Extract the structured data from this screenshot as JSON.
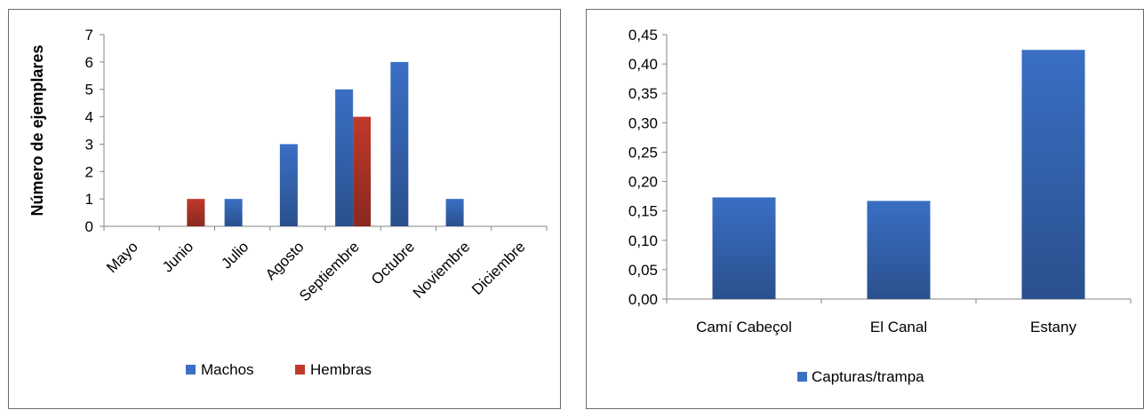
{
  "chart_data": [
    {
      "type": "bar",
      "ylabel": "Número de ejemplares",
      "xlabel": "",
      "ylim": [
        0,
        7
      ],
      "y_ticks": [
        "0",
        "1",
        "2",
        "3",
        "4",
        "5",
        "6",
        "7"
      ],
      "categories": [
        "Mayo",
        "Junio",
        "Julio",
        "Agosto",
        "Septiembre",
        "Octubre",
        "Noviembre",
        "Diciembre"
      ],
      "series": [
        {
          "name": "Machos",
          "color": "#3a6fc4",
          "values": [
            0,
            0,
            1,
            3,
            5,
            6,
            1,
            0
          ]
        },
        {
          "name": "Hembras",
          "color": "#c0392b",
          "values": [
            0,
            1,
            0,
            0,
            4,
            0,
            0,
            0
          ]
        }
      ],
      "legend_position": "bottom",
      "grid": false
    },
    {
      "type": "bar",
      "ylabel": "",
      "xlabel": "",
      "ylim": [
        0,
        0.45
      ],
      "y_ticks": [
        "0,00",
        "0,05",
        "0,10",
        "0,15",
        "0,20",
        "0,25",
        "0,30",
        "0,35",
        "0,40",
        "0,45"
      ],
      "categories": [
        "Camí Cabeçol",
        "El Canal",
        "Estany"
      ],
      "series": [
        {
          "name": "Capturas/trampa",
          "color": "#3a6fc4",
          "values": [
            0.173,
            0.167,
            0.424
          ]
        }
      ],
      "legend_position": "bottom",
      "grid": false
    }
  ]
}
